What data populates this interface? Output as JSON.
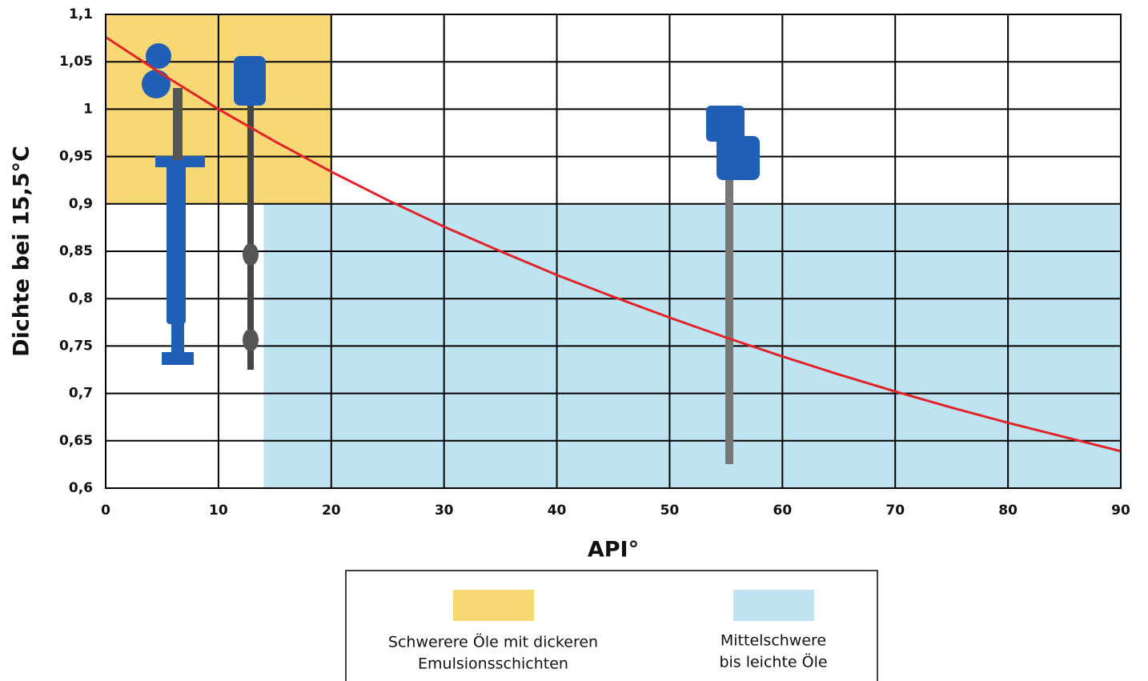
{
  "chart_data": {
    "type": "line",
    "xlabel": "API°",
    "ylabel": "Dichte bei 15,5°C",
    "x": [
      0,
      5,
      10,
      15,
      20,
      25,
      30,
      35,
      40,
      45,
      50,
      55,
      60,
      65,
      70,
      75,
      80,
      85,
      90
    ],
    "series": [
      {
        "color": "#e3232a",
        "values": [
          1.076,
          1.037,
          1.0,
          0.966,
          0.934,
          0.904,
          0.876,
          0.85,
          0.825,
          0.802,
          0.78,
          0.759,
          0.739,
          0.72,
          0.702,
          0.685,
          0.669,
          0.654,
          0.639
        ]
      }
    ],
    "regions": [
      {
        "name": [
          "Schwerere Öle mit dickeren",
          "Emulsionsschichten"
        ],
        "color": "#f8d874",
        "xlim": [
          0,
          20
        ],
        "ylim": [
          0.9,
          1.1
        ]
      },
      {
        "name": [
          "Mittelschwere",
          "bis leichte Öle"
        ],
        "color": "#bde4f0",
        "xlim": [
          14,
          90
        ],
        "ylim": [
          0.6,
          0.9
        ]
      }
    ],
    "xlim": [
      0,
      90
    ],
    "ylim": [
      0.6,
      1.1
    ],
    "xticks": [
      0,
      10,
      20,
      30,
      40,
      50,
      60,
      70,
      80,
      90
    ],
    "yticks": [
      {
        "value": 0.6,
        "label": "0,6"
      },
      {
        "value": 0.65,
        "label": "0,65"
      },
      {
        "value": 0.7,
        "label": "0,7"
      },
      {
        "value": 0.75,
        "label": "0,75"
      },
      {
        "value": 0.8,
        "label": "0,8"
      },
      {
        "value": 0.85,
        "label": "0,85"
      },
      {
        "value": 0.9,
        "label": "0,9"
      },
      {
        "value": 0.95,
        "label": "0,95"
      },
      1,
      {
        "value": 1.05,
        "label": "1,05"
      },
      {
        "value": 1.1,
        "label": "1,1"
      }
    ],
    "grid": true
  }
}
